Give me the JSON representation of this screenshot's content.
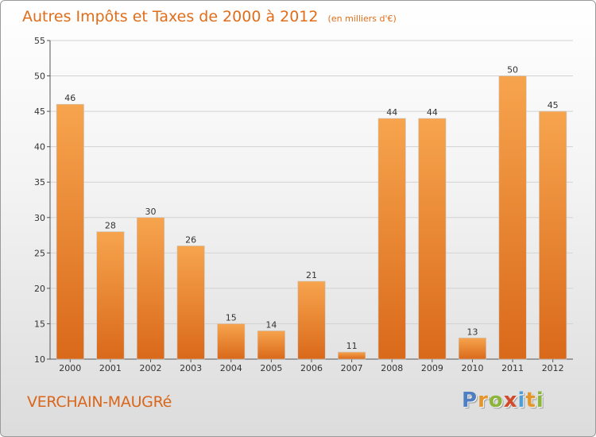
{
  "chart_data": {
    "type": "bar",
    "title": "Autres Impôts et Taxes de 2000 à 2012",
    "subtitle": "(en milliers d'€)",
    "categories": [
      "2000",
      "2001",
      "2002",
      "2003",
      "2004",
      "2005",
      "2006",
      "2007",
      "2008",
      "2009",
      "2010",
      "2011",
      "2012"
    ],
    "values": [
      46,
      28,
      30,
      26,
      15,
      14,
      21,
      11,
      44,
      44,
      13,
      50,
      45
    ],
    "ylim": [
      10,
      55
    ],
    "yticks": [
      10,
      15,
      20,
      25,
      30,
      35,
      40,
      45,
      50,
      55
    ],
    "grid": true,
    "xlabel": "",
    "ylabel": "",
    "bar_color_light": "#f7a44e",
    "bar_color_dark": "#d9691a"
  },
  "footer": {
    "town": "VERCHAIN-MAUGRé",
    "logo": [
      "P",
      "r",
      "o",
      "x",
      "i",
      "t",
      "i"
    ]
  }
}
